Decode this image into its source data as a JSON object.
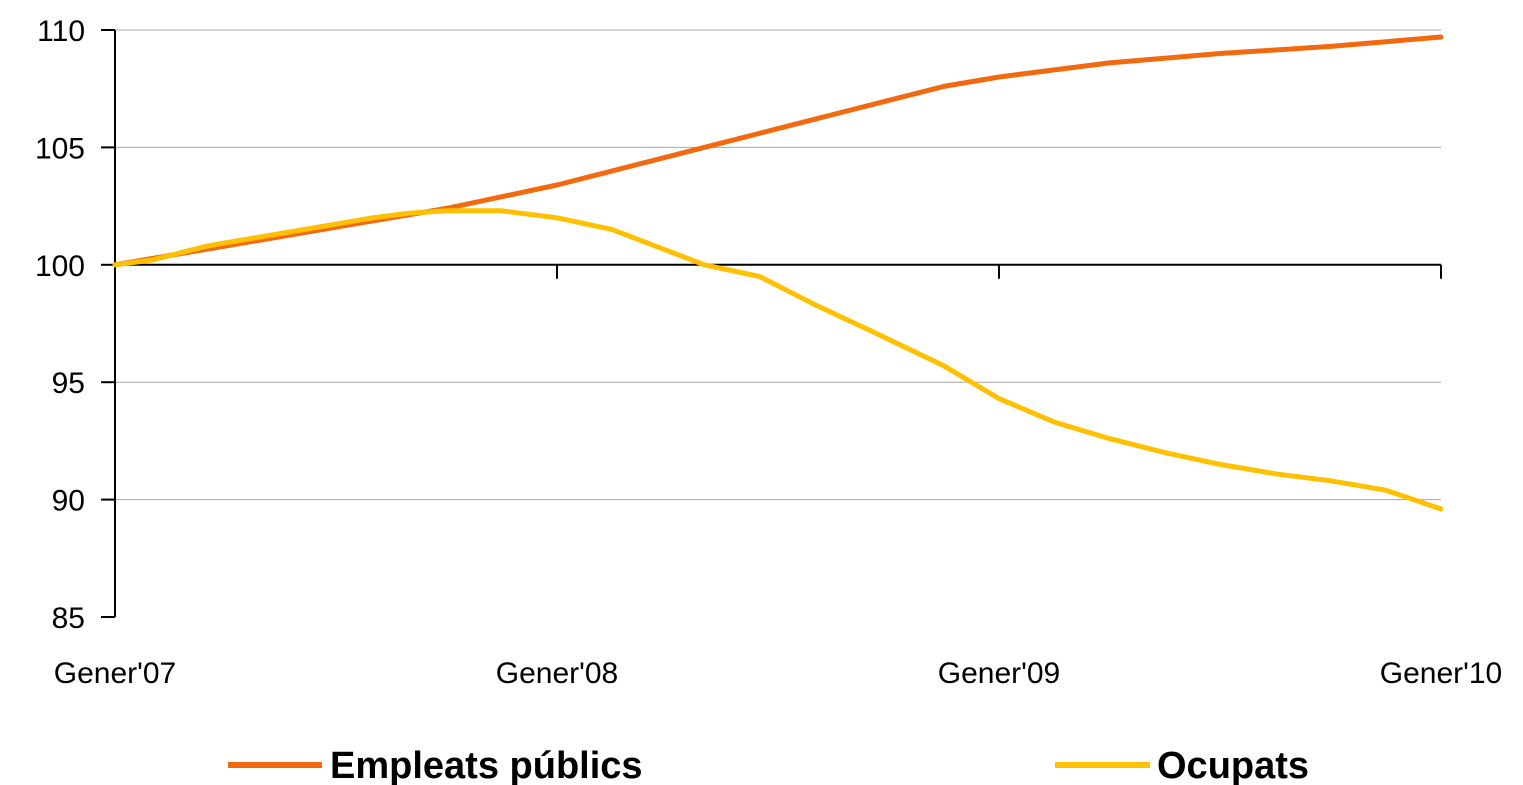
{
  "chart_data": {
    "type": "line",
    "title": "",
    "xlabel": "",
    "ylabel": "",
    "ylim": [
      85,
      110
    ],
    "yticks": [
      85,
      90,
      95,
      100,
      105,
      110
    ],
    "xlim": [
      0,
      36
    ],
    "xticks": [
      {
        "label": "Gener'07",
        "x": 0
      },
      {
        "label": "Gener'08",
        "x": 12
      },
      {
        "label": "Gener'09",
        "x": 24
      },
      {
        "label": "Gener'10",
        "x": 36
      }
    ],
    "reference_line": 100,
    "grid": true,
    "legend_position": "bottom",
    "series": [
      {
        "name": "Empleats públics",
        "color": "#f26a10",
        "x": [
          0,
          1.5,
          3,
          4.5,
          6,
          7.5,
          9,
          10.5,
          12,
          13.5,
          15,
          16.5,
          18,
          19.5,
          21,
          22.5,
          24,
          25.5,
          27,
          28.5,
          30,
          31.5,
          33,
          34.5,
          36
        ],
        "values": [
          100.0,
          100.4,
          100.8,
          101.2,
          101.6,
          102.0,
          102.4,
          102.9,
          103.4,
          104.0,
          104.6,
          105.2,
          105.8,
          106.4,
          107.0,
          107.6,
          108.0,
          108.3,
          108.6,
          108.8,
          109.0,
          109.15,
          109.3,
          109.5,
          109.7
        ]
      },
      {
        "name": "Ocupats",
        "color": "#ffc000",
        "x": [
          0,
          1,
          2.5,
          4,
          5.5,
          7,
          8,
          9,
          10.5,
          12,
          13.5,
          15,
          16,
          17.5,
          19,
          20.5,
          22.5,
          24,
          25.5,
          27,
          28.5,
          30,
          31.5,
          33,
          34.5,
          36
        ],
        "values": [
          100.0,
          100.2,
          100.8,
          101.2,
          101.6,
          102.0,
          102.2,
          102.3,
          102.3,
          102.0,
          101.5,
          100.6,
          100.0,
          99.5,
          98.3,
          97.2,
          95.7,
          94.3,
          93.3,
          92.6,
          92.0,
          91.5,
          91.1,
          90.8,
          90.4,
          89.6
        ]
      }
    ]
  }
}
